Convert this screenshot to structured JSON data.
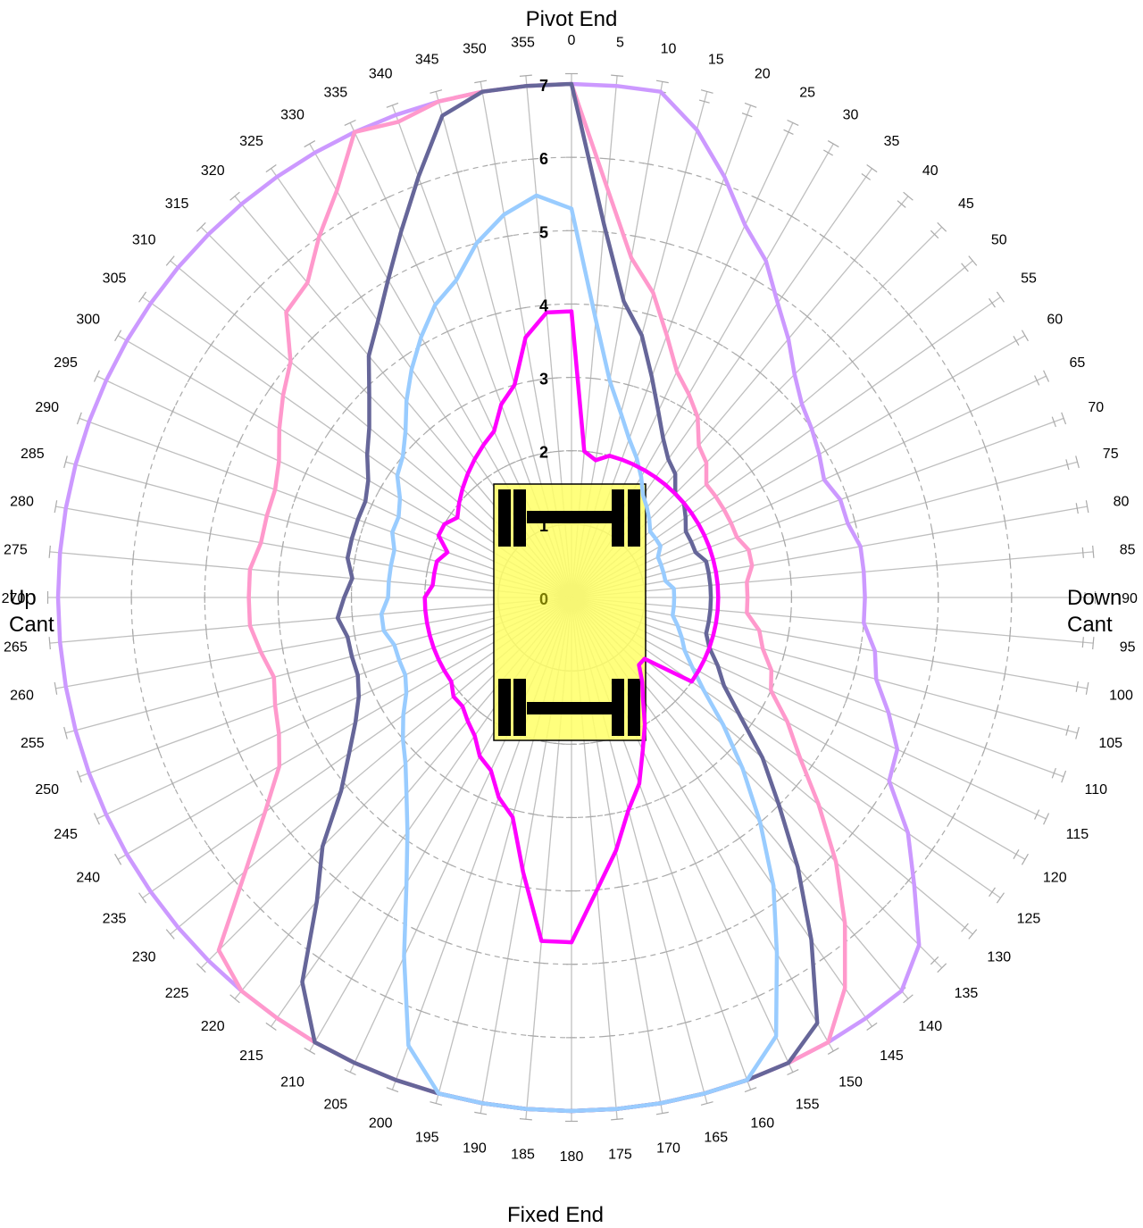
{
  "labels": {
    "top": "Pivot End",
    "bottom": "Fixed End",
    "left_line1": "Up",
    "left_line2": "Cant",
    "right_line1": "Down",
    "right_line2": "Cant"
  },
  "chart_data": {
    "type": "radar",
    "title": "",
    "angular_ticks": [
      0,
      5,
      10,
      15,
      20,
      25,
      30,
      35,
      40,
      45,
      50,
      55,
      60,
      65,
      70,
      75,
      80,
      85,
      90,
      95,
      100,
      105,
      110,
      115,
      120,
      125,
      130,
      135,
      140,
      145,
      150,
      155,
      160,
      165,
      170,
      175,
      180,
      185,
      190,
      195,
      200,
      205,
      210,
      215,
      220,
      225,
      230,
      235,
      240,
      245,
      250,
      255,
      260,
      265,
      270,
      275,
      280,
      285,
      290,
      295,
      300,
      305,
      310,
      315,
      320,
      325,
      330,
      335,
      340,
      345,
      350,
      355
    ],
    "angular_tick_labels": [
      "0",
      "5",
      "10",
      "15",
      "20",
      "25",
      "30",
      "35",
      "40",
      "45",
      "50",
      "55",
      "60",
      "65",
      "70",
      "75",
      "80",
      "85",
      "90",
      "95",
      "100",
      "105",
      "110",
      "115",
      "120",
      "125",
      "130",
      "135",
      "140",
      "145",
      "150",
      "155",
      "160",
      "165",
      "170",
      "175",
      "180",
      "185",
      "190",
      "195",
      "200",
      "205",
      "210",
      "215",
      "220",
      "225",
      "230",
      "235",
      "240",
      "245",
      "250",
      "255",
      "260",
      "265",
      "270",
      "275",
      "280",
      "285",
      "290",
      "295",
      "300",
      "305",
      "310",
      "315",
      "320",
      "325",
      "330",
      "335",
      "340",
      "345",
      "350",
      "355"
    ],
    "radial_ticks": [
      "0",
      "1",
      "2",
      "3",
      "4",
      "5",
      "6",
      "7"
    ],
    "radial_range": [
      0,
      7
    ],
    "grid": true,
    "legend": "none",
    "series": [
      {
        "color": "#cc99ff",
        "values": [
          7.0,
          7.0,
          7.0,
          6.6,
          6.1,
          5.6,
          5.3,
          4.9,
          4.6,
          4.3,
          4.1,
          4.0,
          3.9,
          3.8,
          3.9,
          3.9,
          4.0,
          4.0,
          4.0,
          4.0,
          4.2,
          4.3,
          4.6,
          4.9,
          5.0,
          5.6,
          6.1,
          6.7,
          7.0,
          7.0,
          7.0,
          7.0,
          7.0,
          7.0,
          7.0,
          7.0,
          7.0,
          7.0,
          7.0,
          7.0,
          7.0,
          7.0,
          7.0,
          7.0,
          7.0,
          7.0,
          7.0,
          7.0,
          7.0,
          7.0,
          7.0,
          7.0,
          7.0,
          7.0,
          7.0,
          7.0,
          7.0,
          7.0,
          7.0,
          7.0,
          7.0,
          7.0,
          7.0,
          7.0,
          7.0,
          7.0,
          7.0,
          7.0,
          7.0,
          7.0,
          7.0,
          7.0
        ]
      },
      {
        "color": "#ff99cc",
        "values": [
          7.0,
          5.6,
          4.7,
          4.3,
          3.8,
          3.4,
          3.2,
          3.0,
          2.7,
          2.6,
          2.4,
          2.4,
          2.4,
          2.4,
          2.4,
          2.5,
          2.5,
          2.4,
          2.4,
          2.4,
          2.6,
          2.7,
          2.9,
          3.0,
          3.4,
          3.8,
          4.4,
          5.1,
          5.8,
          6.5,
          7.0,
          7.0,
          7.0,
          7.0,
          7.0,
          7.0,
          7.0,
          7.0,
          7.0,
          7.0,
          7.0,
          7.0,
          7.0,
          7.0,
          7.0,
          6.8,
          5.8,
          5.1,
          4.6,
          4.4,
          4.3,
          4.2,
          4.3,
          4.4,
          4.4,
          4.4,
          4.3,
          4.3,
          4.3,
          4.4,
          4.6,
          4.8,
          5.0,
          5.5,
          5.6,
          6.0,
          6.4,
          7.0,
          6.9,
          7.0,
          7.0,
          7.0
        ]
      },
      {
        "color": "#666699",
        "values": [
          7.0,
          5.1,
          4.1,
          3.7,
          3.2,
          2.8,
          2.5,
          2.3,
          2.2,
          2.0,
          2.0,
          1.9,
          1.8,
          1.8,
          1.8,
          1.9,
          1.9,
          1.9,
          1.9,
          1.9,
          1.9,
          1.9,
          2.0,
          2.2,
          2.4,
          2.8,
          3.4,
          4.0,
          4.8,
          5.7,
          6.7,
          7.0,
          7.0,
          7.0,
          7.0,
          7.0,
          7.0,
          7.0,
          7.0,
          7.0,
          7.0,
          7.0,
          7.0,
          6.4,
          5.4,
          4.8,
          4.1,
          3.7,
          3.4,
          3.2,
          3.1,
          3.1,
          3.1,
          3.2,
          3.1,
          3.0,
          3.1,
          3.1,
          3.1,
          3.1,
          3.2,
          3.4,
          3.6,
          3.9,
          4.3,
          4.6,
          5.0,
          5.5,
          6.1,
          6.8,
          7.0,
          7.0
        ]
      },
      {
        "color": "#99ccff",
        "values": [
          5.3,
          3.8,
          3.0,
          2.6,
          2.3,
          2.1,
          1.9,
          1.7,
          1.6,
          1.5,
          1.4,
          1.4,
          1.4,
          1.3,
          1.3,
          1.3,
          1.3,
          1.4,
          1.4,
          1.4,
          1.4,
          1.5,
          1.6,
          1.7,
          1.9,
          2.2,
          2.7,
          3.3,
          4.0,
          4.8,
          5.6,
          6.6,
          7.0,
          7.0,
          7.0,
          7.0,
          7.0,
          7.0,
          7.0,
          7.0,
          6.5,
          5.4,
          4.5,
          3.9,
          3.5,
          3.2,
          3.0,
          2.8,
          2.6,
          2.5,
          2.5,
          2.5,
          2.6,
          2.6,
          2.5,
          2.5,
          2.5,
          2.5,
          2.6,
          2.6,
          2.7,
          2.9,
          3.0,
          3.2,
          3.5,
          3.8,
          4.1,
          4.4,
          4.6,
          5.0,
          5.3,
          5.5
        ]
      },
      {
        "color": "#ff00ff",
        "values": [
          3.9,
          2.0,
          1.9,
          2.0,
          2.0,
          2.0,
          2.0,
          2.0,
          2.0,
          2.0,
          2.0,
          2.0,
          2.0,
          2.0,
          2.0,
          2.0,
          2.0,
          2.0,
          2.0,
          2.0,
          2.0,
          2.0,
          2.0,
          2.0,
          2.0,
          2.0,
          1.3,
          1.3,
          1.5,
          1.7,
          2.0,
          2.3,
          2.7,
          3.0,
          3.5,
          4.0,
          4.7,
          4.7,
          3.8,
          3.1,
          2.9,
          2.6,
          2.5,
          2.3,
          2.2,
          2.1,
          2.1,
          2.0,
          2.0,
          2.0,
          2.0,
          2.0,
          2.0,
          2.0,
          2.0,
          1.9,
          1.9,
          1.9,
          1.8,
          2.0,
          2.0,
          1.9,
          2.0,
          2.1,
          2.2,
          2.3,
          2.4,
          2.5,
          2.8,
          3.0,
          3.6,
          3.9
        ]
      }
    ]
  }
}
